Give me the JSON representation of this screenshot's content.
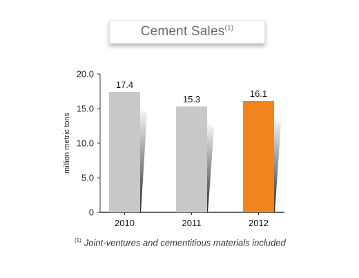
{
  "title": {
    "text": "Cement Sales",
    "superscript": "(1)"
  },
  "footnote": {
    "marker": "(1)",
    "text": "Joint-ventures and cementitious materials included"
  },
  "chart_data": {
    "type": "bar",
    "title": "Cement Sales",
    "categories": [
      "2010",
      "2011",
      "2012"
    ],
    "values": [
      17.4,
      15.3,
      16.1
    ],
    "value_labels": [
      "17.4",
      "15.3",
      "16.1"
    ],
    "xlabel": "",
    "ylabel": "million metric tons",
    "ylim": [
      0,
      20
    ],
    "yticks": [
      0,
      5,
      10,
      15,
      20
    ],
    "ytick_labels": [
      "0",
      "5.0",
      "10.0",
      "15.0",
      "20.0"
    ],
    "grid": false,
    "legend": "none",
    "colors": {
      "default_bar": "#c8c8c8",
      "highlight_bar": "#f28420",
      "axis": "#333333",
      "shadow": "#2a2a2a"
    },
    "highlight_index": 2
  }
}
